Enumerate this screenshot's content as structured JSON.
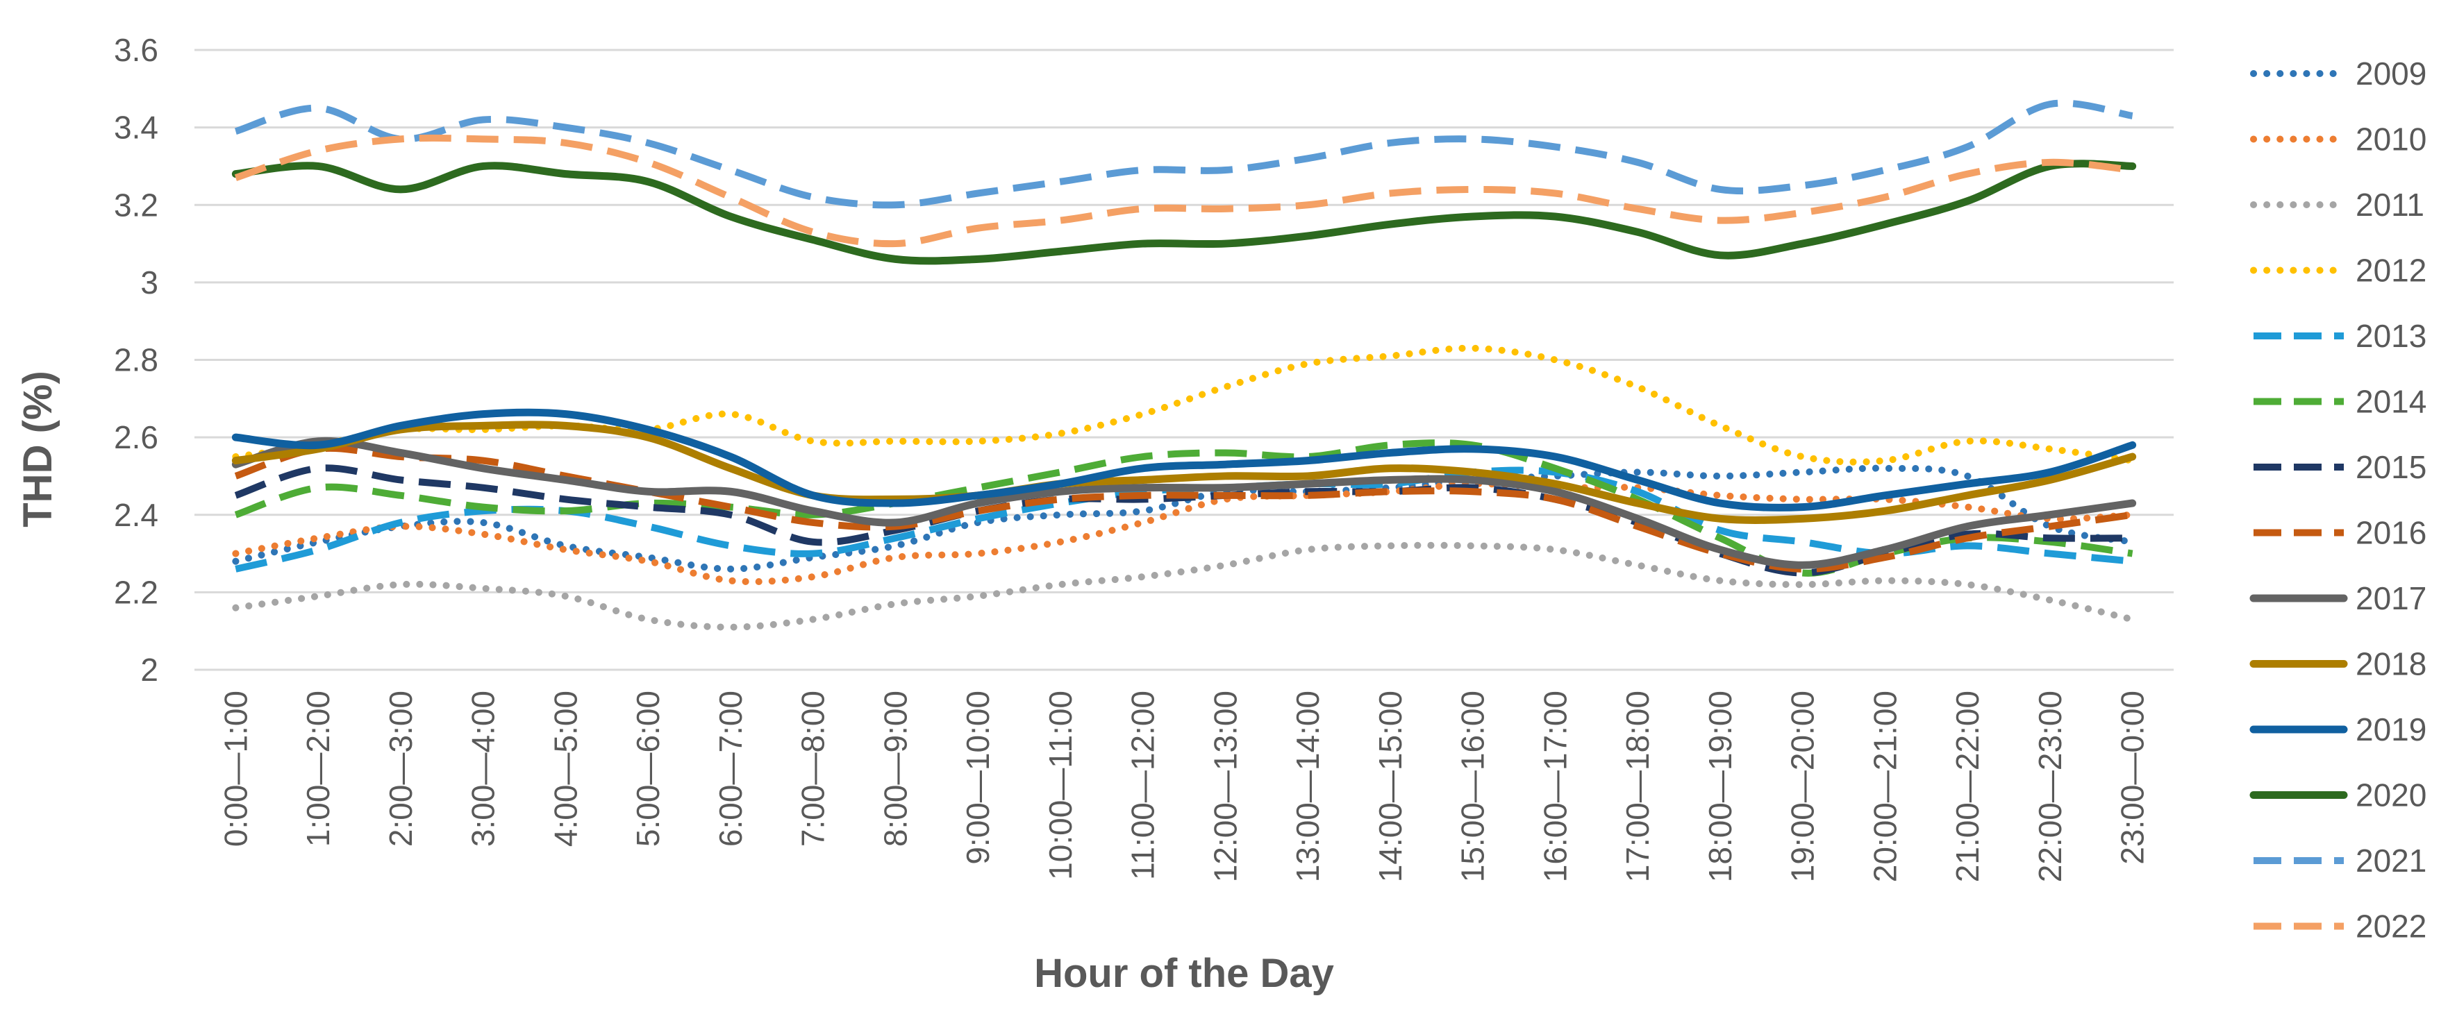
{
  "chart_data": {
    "type": "line",
    "title": "",
    "xlabel": "Hour of the Day",
    "ylabel": "THD (%)",
    "ylim": [
      2,
      3.6
    ],
    "yticks": [
      2,
      2.2,
      2.4,
      2.6,
      2.8,
      3,
      3.2,
      3.4,
      3.6
    ],
    "ytick_labels": [
      "2",
      "2.2",
      "2.4",
      "2.6",
      "2.8",
      "3",
      "3.2",
      "3.4",
      "3.6"
    ],
    "grid": true,
    "legend_position": "right",
    "categories": [
      "0:00—1:00",
      "1:00—2:00",
      "2:00—3:00",
      "3:00—4:00",
      "4:00—5:00",
      "5:00—6:00",
      "6:00—7:00",
      "7:00—8:00",
      "8:00—9:00",
      "9:00—10:00",
      "10:00—11:00",
      "11:00—12:00",
      "12:00—13:00",
      "13:00—14:00",
      "14:00—15:00",
      "15:00—16:00",
      "16:00—17:00",
      "17:00—18:00",
      "18:00—19:00",
      "19:00—20:00",
      "20:00—21:00",
      "21:00—22:00",
      "22:00—23:00",
      "23:00—0:00"
    ],
    "series": [
      {
        "name": "2009",
        "color": "#2E75B6",
        "style": "dot",
        "values": [
          2.28,
          2.33,
          2.37,
          2.38,
          2.32,
          2.29,
          2.26,
          2.29,
          2.32,
          2.38,
          2.4,
          2.41,
          2.46,
          2.46,
          2.47,
          2.49,
          2.5,
          2.51,
          2.5,
          2.51,
          2.52,
          2.5,
          2.37,
          2.33
        ]
      },
      {
        "name": "2010",
        "color": "#ED7D31",
        "style": "dot",
        "values": [
          2.3,
          2.34,
          2.37,
          2.35,
          2.31,
          2.28,
          2.23,
          2.24,
          2.29,
          2.3,
          2.33,
          2.38,
          2.44,
          2.45,
          2.46,
          2.48,
          2.47,
          2.47,
          2.45,
          2.44,
          2.44,
          2.42,
          2.39,
          2.4
        ]
      },
      {
        "name": "2011",
        "color": "#A5A5A5",
        "style": "dot",
        "values": [
          2.16,
          2.19,
          2.22,
          2.21,
          2.19,
          2.13,
          2.11,
          2.13,
          2.17,
          2.19,
          2.22,
          2.24,
          2.27,
          2.31,
          2.32,
          2.32,
          2.31,
          2.27,
          2.23,
          2.22,
          2.23,
          2.22,
          2.18,
          2.13
        ]
      },
      {
        "name": "2012",
        "color": "#FFC000",
        "style": "dot",
        "values": [
          2.55,
          2.58,
          2.62,
          2.62,
          2.63,
          2.62,
          2.66,
          2.59,
          2.59,
          2.59,
          2.61,
          2.66,
          2.73,
          2.79,
          2.81,
          2.83,
          2.8,
          2.73,
          2.63,
          2.55,
          2.54,
          2.59,
          2.57,
          2.54
        ]
      },
      {
        "name": "2013",
        "color": "#1F9BD7",
        "style": "dash",
        "values": [
          2.26,
          2.31,
          2.38,
          2.41,
          2.41,
          2.37,
          2.32,
          2.3,
          2.34,
          2.39,
          2.43,
          2.46,
          2.47,
          2.48,
          2.48,
          2.51,
          2.51,
          2.46,
          2.36,
          2.33,
          2.3,
          2.32,
          2.3,
          2.28
        ]
      },
      {
        "name": "2014",
        "color": "#4EAC36",
        "style": "dash",
        "values": [
          2.4,
          2.47,
          2.45,
          2.42,
          2.41,
          2.43,
          2.42,
          2.4,
          2.43,
          2.47,
          2.51,
          2.55,
          2.56,
          2.55,
          2.58,
          2.58,
          2.52,
          2.44,
          2.34,
          2.25,
          2.3,
          2.34,
          2.33,
          2.3
        ]
      },
      {
        "name": "2015",
        "color": "#1F3864",
        "style": "dash",
        "values": [
          2.45,
          2.52,
          2.49,
          2.47,
          2.44,
          2.42,
          2.4,
          2.33,
          2.36,
          2.41,
          2.44,
          2.44,
          2.45,
          2.46,
          2.46,
          2.47,
          2.44,
          2.38,
          2.3,
          2.25,
          2.3,
          2.35,
          2.34,
          2.34
        ]
      },
      {
        "name": "2016",
        "color": "#C55A11",
        "style": "dash",
        "values": [
          2.5,
          2.57,
          2.55,
          2.54,
          2.5,
          2.46,
          2.42,
          2.38,
          2.37,
          2.41,
          2.44,
          2.45,
          2.45,
          2.45,
          2.46,
          2.46,
          2.44,
          2.37,
          2.3,
          2.26,
          2.29,
          2.34,
          2.37,
          2.4
        ]
      },
      {
        "name": "2017",
        "color": "#636363",
        "style": "solid",
        "values": [
          2.53,
          2.59,
          2.56,
          2.52,
          2.49,
          2.46,
          2.46,
          2.41,
          2.38,
          2.43,
          2.46,
          2.47,
          2.47,
          2.48,
          2.49,
          2.49,
          2.46,
          2.39,
          2.31,
          2.27,
          2.31,
          2.37,
          2.4,
          2.43
        ]
      },
      {
        "name": "2018",
        "color": "#AD7E00",
        "style": "solid",
        "values": [
          2.54,
          2.57,
          2.62,
          2.63,
          2.63,
          2.6,
          2.52,
          2.45,
          2.44,
          2.45,
          2.48,
          2.49,
          2.5,
          2.5,
          2.52,
          2.51,
          2.48,
          2.43,
          2.39,
          2.39,
          2.41,
          2.45,
          2.49,
          2.55
        ]
      },
      {
        "name": "2019",
        "color": "#1060A0",
        "style": "solid",
        "values": [
          2.6,
          2.58,
          2.63,
          2.66,
          2.66,
          2.62,
          2.55,
          2.45,
          2.43,
          2.45,
          2.48,
          2.52,
          2.53,
          2.54,
          2.56,
          2.57,
          2.55,
          2.49,
          2.43,
          2.42,
          2.45,
          2.48,
          2.51,
          2.58
        ]
      },
      {
        "name": "2020",
        "color": "#2D6A1F",
        "style": "solid",
        "values": [
          3.28,
          3.3,
          3.24,
          3.3,
          3.28,
          3.26,
          3.17,
          3.11,
          3.06,
          3.06,
          3.08,
          3.1,
          3.1,
          3.12,
          3.15,
          3.17,
          3.17,
          3.13,
          3.07,
          3.1,
          3.15,
          3.21,
          3.3,
          3.3
        ]
      },
      {
        "name": "2021",
        "color": "#5B9BD5",
        "style": "dash",
        "values": [
          3.39,
          3.45,
          3.37,
          3.42,
          3.4,
          3.36,
          3.29,
          3.22,
          3.2,
          3.23,
          3.26,
          3.29,
          3.29,
          3.32,
          3.36,
          3.37,
          3.35,
          3.31,
          3.24,
          3.25,
          3.29,
          3.35,
          3.46,
          3.43
        ]
      },
      {
        "name": "2022",
        "color": "#F4A064",
        "style": "dash",
        "values": [
          3.27,
          3.34,
          3.37,
          3.37,
          3.36,
          3.31,
          3.22,
          3.13,
          3.1,
          3.14,
          3.16,
          3.19,
          3.19,
          3.2,
          3.23,
          3.24,
          3.23,
          3.19,
          3.16,
          3.18,
          3.22,
          3.28,
          3.31,
          3.29
        ]
      }
    ]
  }
}
